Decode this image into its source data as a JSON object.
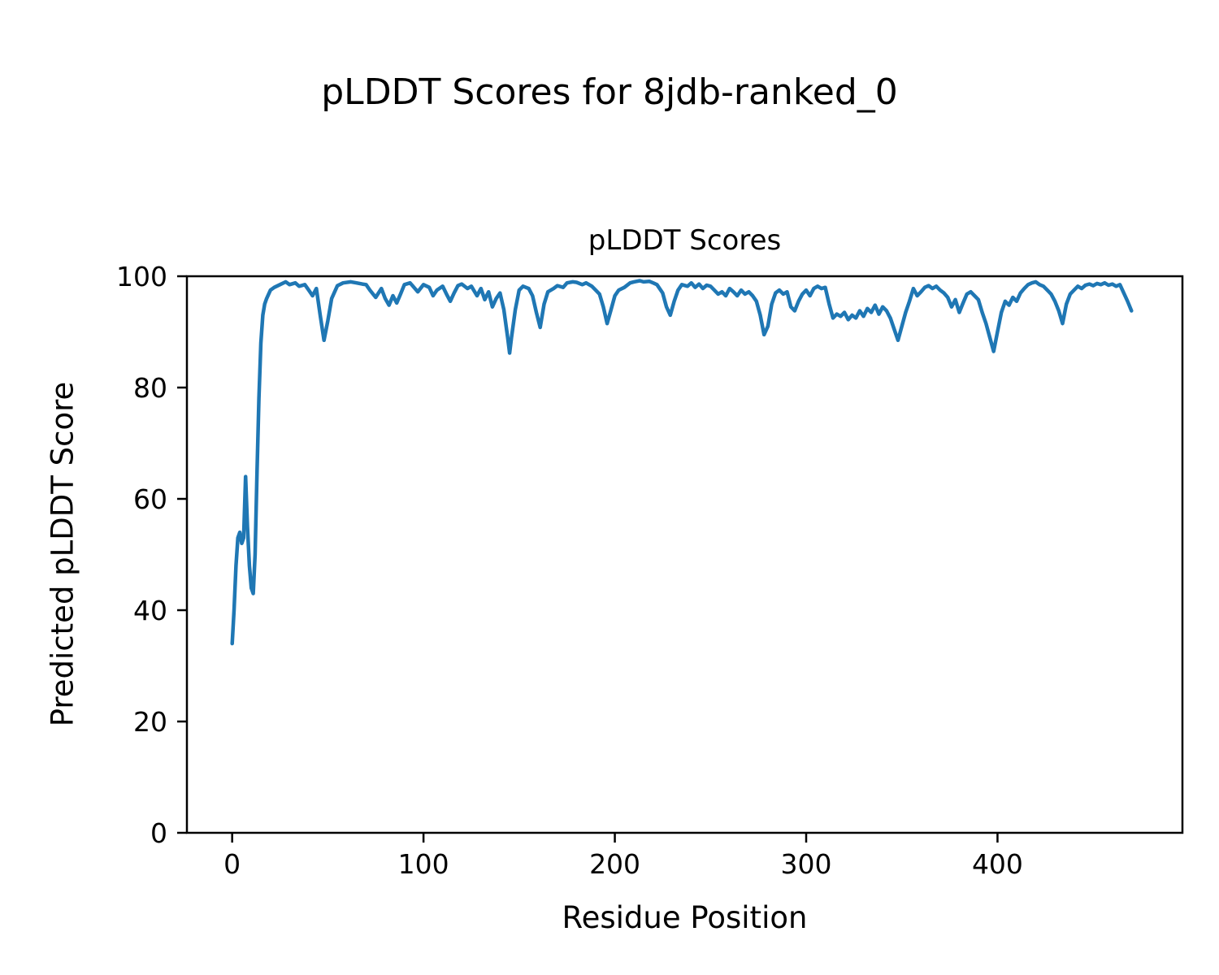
{
  "figure": {
    "suptitle": "pLDDT Scores for 8jdb-ranked_0"
  },
  "chart_data": {
    "type": "line",
    "title": "pLDDT Scores",
    "xlabel": "Residue Position",
    "ylabel": "Predicted pLDDT Score",
    "xlim": [
      -23.65,
      496.65
    ],
    "ylim": [
      0,
      100
    ],
    "xticks": [
      0,
      100,
      200,
      300,
      400
    ],
    "yticks": [
      0,
      20,
      40,
      60,
      80,
      100
    ],
    "grid": false,
    "legend": "none",
    "line_color": "#1f77b4",
    "axis_color": "#000000",
    "line_width": 4.5,
    "series": [
      {
        "name": "pLDDT",
        "x": [
          0,
          1,
          2,
          3,
          4,
          5,
          6,
          7,
          8,
          9,
          10,
          11,
          12,
          13,
          14,
          15,
          16,
          17,
          18,
          20,
          22,
          25,
          28,
          30,
          33,
          35,
          38,
          40,
          42,
          44,
          46,
          48,
          50,
          52,
          55,
          58,
          62,
          65,
          68,
          70,
          72,
          75,
          78,
          80,
          82,
          84,
          86,
          88,
          90,
          93,
          95,
          97,
          100,
          103,
          105,
          107,
          110,
          112,
          114,
          116,
          118,
          120,
          123,
          125,
          128,
          130,
          132,
          134,
          136,
          138,
          140,
          142,
          144,
          145,
          146,
          148,
          150,
          152,
          155,
          157,
          159,
          161,
          163,
          165,
          168,
          170,
          173,
          175,
          178,
          180,
          183,
          185,
          188,
          190,
          192,
          194,
          196,
          198,
          200,
          202,
          205,
          208,
          210,
          213,
          215,
          218,
          220,
          222,
          225,
          227,
          229,
          231,
          233,
          235,
          238,
          240,
          242,
          244,
          246,
          248,
          250,
          252,
          254,
          256,
          258,
          260,
          262,
          264,
          266,
          268,
          270,
          272,
          274,
          276,
          278,
          280,
          282,
          284,
          286,
          288,
          290,
          292,
          294,
          296,
          298,
          300,
          302,
          304,
          306,
          308,
          310,
          312,
          314,
          316,
          318,
          320,
          322,
          324,
          326,
          328,
          330,
          332,
          334,
          336,
          338,
          340,
          342,
          344,
          346,
          348,
          350,
          352,
          354,
          356,
          358,
          360,
          362,
          364,
          366,
          368,
          370,
          372,
          374,
          376,
          378,
          380,
          382,
          384,
          386,
          388,
          390,
          392,
          394,
          396,
          398,
          400,
          402,
          404,
          406,
          408,
          410,
          412,
          414,
          416,
          418,
          420,
          422,
          424,
          426,
          428,
          430,
          432,
          434,
          436,
          438,
          440,
          442,
          444,
          446,
          448,
          450,
          452,
          454,
          456,
          458,
          460,
          462,
          464,
          466,
          468,
          470
        ],
        "y": [
          34,
          40,
          48,
          53,
          54,
          52,
          53,
          64,
          55,
          48,
          44,
          43,
          50,
          65,
          78,
          88,
          93,
          95,
          96,
          97.5,
          98,
          98.5,
          99,
          98.5,
          98.8,
          98.2,
          98.5,
          97.5,
          96.5,
          97.8,
          93,
          88.5,
          92,
          96,
          98.3,
          98.8,
          99,
          98.8,
          98.6,
          98.5,
          97.5,
          96.2,
          97.8,
          96,
          94.8,
          96.5,
          95.2,
          96.8,
          98.5,
          98.8,
          98,
          97.2,
          98.5,
          98,
          96.5,
          97.5,
          98.2,
          96.8,
          95.5,
          97,
          98.3,
          98.6,
          97.8,
          98.2,
          96.5,
          97.8,
          95.8,
          97.2,
          94.5,
          96,
          97,
          94,
          89,
          86.2,
          89,
          94,
          97.5,
          98.2,
          97.8,
          96.5,
          93.5,
          90.8,
          95,
          97.2,
          97.8,
          98.3,
          98,
          98.8,
          99,
          98.9,
          98.5,
          98.8,
          98.2,
          97.5,
          96.8,
          94.5,
          91.5,
          94,
          96.5,
          97.5,
          98,
          98.8,
          99,
          99.2,
          99,
          99.1,
          98.8,
          98.5,
          97,
          94.5,
          93,
          95.5,
          97.5,
          98.5,
          98.2,
          98.8,
          98,
          98.6,
          97.8,
          98.4,
          98.2,
          97.5,
          96.8,
          97.2,
          96.5,
          97.8,
          97.2,
          96.5,
          97.5,
          96.8,
          97.2,
          96.5,
          95.5,
          93,
          89.5,
          91,
          95,
          97,
          97.5,
          96.8,
          97.2,
          94.5,
          93.8,
          95.5,
          96.8,
          97.5,
          96.5,
          97.8,
          98.2,
          97.8,
          98,
          95,
          92.5,
          93.2,
          92.8,
          93.5,
          92.2,
          93,
          92.5,
          93.8,
          92.8,
          94.2,
          93.5,
          94.8,
          93.2,
          94.5,
          93.8,
          92.5,
          90.5,
          88.5,
          91,
          93.5,
          95.5,
          97.8,
          96.5,
          97.2,
          98,
          98.3,
          97.8,
          98.2,
          97.5,
          97,
          96.2,
          94.5,
          95.8,
          93.5,
          95.2,
          96.8,
          97.2,
          96.5,
          95.8,
          93.5,
          91.5,
          89,
          86.5,
          90,
          93.5,
          95.5,
          94.8,
          96.2,
          95.5,
          97,
          97.8,
          98.5,
          98.8,
          99,
          98.5,
          98.2,
          97.5,
          96.8,
          95.5,
          93.8,
          91.5,
          95,
          96.8,
          97.5,
          98.2,
          97.8,
          98.4,
          98.6,
          98.3,
          98.7,
          98.5,
          98.8,
          98.4,
          98.6,
          98.2,
          98.5,
          97,
          95.5,
          93.8
        ]
      }
    ]
  }
}
